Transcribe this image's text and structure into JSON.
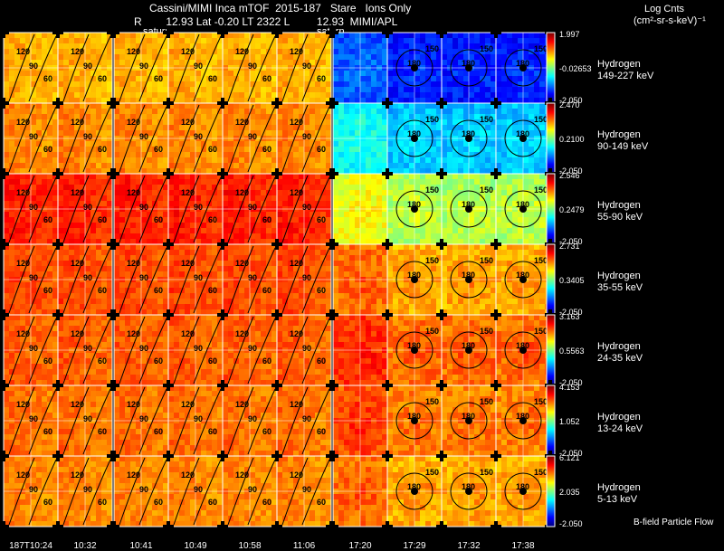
{
  "header": {
    "line1": "Cassini/MIMI Inca mTOF  2015-187   Stare   Ions Only",
    "line2": "R        12.93 Lat -0.20 LT 2322 L         12.93  MIMI/APL",
    "saturn_label_1": "saturn",
    "saturn_label_2": "saturn",
    "units_title": "Log Cnts",
    "units_sub": "(cm²-sr-s-keV)⁻¹"
  },
  "footer": {
    "bfield_label": "B-field Particle Flow",
    "time_labels": [
      "187T10:24",
      "10:32",
      "10:41",
      "10:49",
      "10:58",
      "11:06",
      "17:20",
      "17:29",
      "17:32",
      "17:38"
    ]
  },
  "contour_labels": {
    "left": [
      "120",
      "90",
      "60"
    ],
    "right": [
      "180",
      "150"
    ]
  },
  "colors": {
    "low": "#0000ff",
    "mid": "#00ffff",
    "high": "#ff0000",
    "frame": "#ffffff",
    "contour": "#000000"
  },
  "rows": [
    {
      "species": "Hydrogen",
      "energy": "149-227 keV",
      "cb_max": "1.997",
      "cb_mid": "-0.02653",
      "cb_min": "-2.050",
      "left_level": 0.72,
      "right_level": 0.18
    },
    {
      "species": "Hydrogen",
      "energy": "90-149 keV",
      "cb_max": "2.470",
      "cb_mid": "0.2100",
      "cb_min": "-2.050",
      "left_level": 0.76,
      "right_level": 0.35
    },
    {
      "species": "Hydrogen",
      "energy": "55-90 keV",
      "cb_max": "2.546",
      "cb_mid": "0.2479",
      "cb_min": "-2.050",
      "left_level": 0.86,
      "right_level": 0.58
    },
    {
      "species": "Hydrogen",
      "energy": "35-55 keV",
      "cb_max": "2.731",
      "cb_mid": "0.3405",
      "cb_min": "-2.050",
      "left_level": 0.82,
      "right_level": 0.74
    },
    {
      "species": "Hydrogen",
      "energy": "24-35 keV",
      "cb_max": "3.163",
      "cb_mid": "0.5563",
      "cb_min": "-2.050",
      "left_level": 0.8,
      "right_level": 0.8
    },
    {
      "species": "Hydrogen",
      "energy": "13-24 keV",
      "cb_max": "4.153",
      "cb_mid": "1.052",
      "cb_min": "-2.050",
      "left_level": 0.78,
      "right_level": 0.78
    },
    {
      "species": "Hydrogen",
      "energy": "5-13 keV",
      "cb_max": "6.121",
      "cb_mid": "2.035",
      "cb_min": "-2.050",
      "left_level": 0.76,
      "right_level": 0.74
    }
  ],
  "chart_data": {
    "type": "heatmap",
    "title": "Cassini/MIMI Inca mTOF  2015-187   Stare   Ions Only",
    "colorbar_label": "Log Cnts (cm²-sr-s-keV)⁻¹",
    "x_time_labels": [
      "187T10:24",
      "10:32",
      "10:41",
      "10:49",
      "10:58",
      "11:06",
      "17:20",
      "17:29",
      "17:32",
      "17:38"
    ],
    "series": [
      {
        "name": "Hydrogen 149-227 keV",
        "range": [
          -2.05,
          1.997
        ],
        "mid": -0.02653
      },
      {
        "name": "Hydrogen 90-149 keV",
        "range": [
          -2.05,
          2.47
        ],
        "mid": 0.21
      },
      {
        "name": "Hydrogen 55-90 keV",
        "range": [
          -2.05,
          2.546
        ],
        "mid": 0.2479
      },
      {
        "name": "Hydrogen 35-55 keV",
        "range": [
          -2.05,
          2.731
        ],
        "mid": 0.3405
      },
      {
        "name": "Hydrogen 24-35 keV",
        "range": [
          -2.05,
          3.163
        ],
        "mid": 0.5563
      },
      {
        "name": "Hydrogen 13-24 keV",
        "range": [
          -2.05,
          4.153
        ],
        "mid": 1.052
      },
      {
        "name": "Hydrogen 5-13 keV",
        "range": [
          -2.05,
          6.121
        ],
        "mid": 2.035
      }
    ]
  }
}
